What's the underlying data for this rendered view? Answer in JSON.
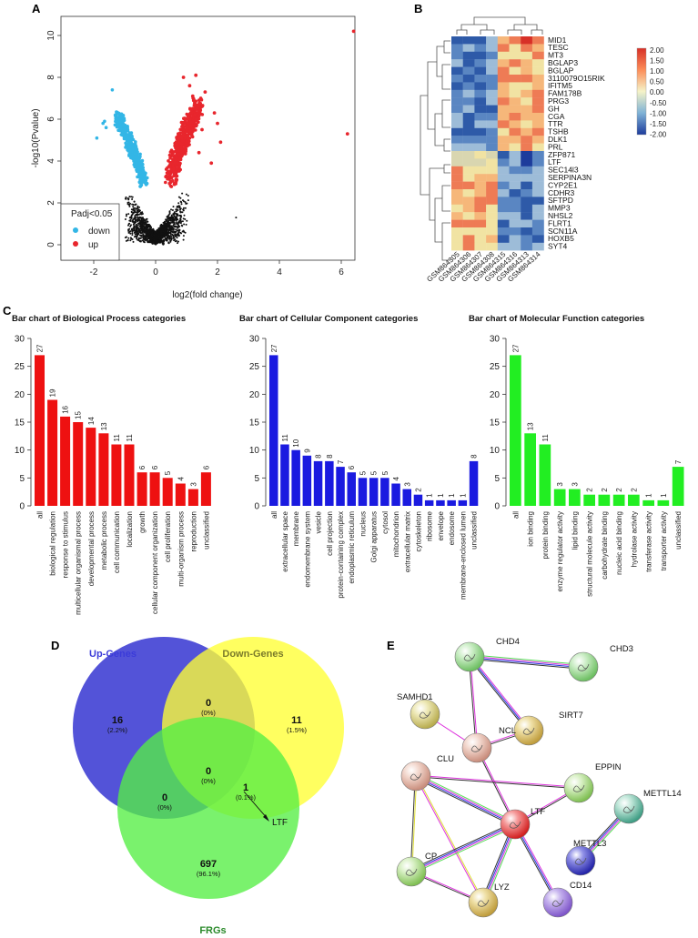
{
  "panels": {
    "a": "A",
    "b": "B",
    "c": "C",
    "d": "D",
    "e": "E"
  },
  "colors": {
    "up": "#e8262d",
    "down": "#33b6e6",
    "ns": "#111111",
    "bp": "#ee1111",
    "cc": "#1a1ae0",
    "mf": "#22ee22",
    "hm_low": "#2747a6",
    "hm_mid": "#f5f3c8",
    "hm_high": "#d73027"
  },
  "volcano": {
    "xlabel": "log2(fold change)",
    "ylabel": "-log10(Pvalue)",
    "xticks": [
      "-2",
      "0",
      "2",
      "4",
      "6"
    ],
    "yticks": [
      "0",
      "2",
      "4",
      "6",
      "8",
      "10"
    ],
    "legend_title": "Padj<0.05",
    "legend_down": "down",
    "legend_up": "up"
  },
  "heatmap": {
    "genes": [
      "MID1",
      "TESC",
      "MT3",
      "BGLAP3",
      "BGLAP",
      "3110079O15RIK",
      "IFITM5",
      "FAM178B",
      "PRG3",
      "GH",
      "CGA",
      "TTR",
      "TSHB",
      "DLK1",
      "PRL",
      "ZFP871",
      "LTF",
      "SEC14l3",
      "SERPINA3N",
      "CYP2E1",
      "CDHR3",
      "SFTPD",
      "MMP3",
      "NHSL2",
      "FLRT1",
      "SCN11A",
      "HOXB5",
      "SYT4"
    ],
    "samples": [
      "GSM864305",
      "GSM864306",
      "GSM864307",
      "GSM864308",
      "GSM864315",
      "GSM864316",
      "GSM864313",
      "GSM864314"
    ],
    "scale": [
      "2.00",
      "1.50",
      "1.00",
      "0.50",
      "0.00",
      "-0.50",
      "-1.00",
      "-1.50",
      "-2.00"
    ]
  },
  "chart_data": [
    {
      "type": "bar",
      "title": "Bar chart of Biological Process categories",
      "categories": [
        "all",
        "biological regulation",
        "response to stimulus",
        "multicellular organismal process",
        "developmental process",
        "metabolic process",
        "cell communication",
        "localization",
        "growth",
        "cellular component organization",
        "cell proliferation",
        "multi-organism process",
        "reproduction",
        "unclassified"
      ],
      "values": [
        27,
        19,
        16,
        15,
        14,
        13,
        11,
        11,
        6,
        6,
        5,
        4,
        3,
        6
      ],
      "yticks": [
        "0",
        "5",
        "10",
        "15",
        "20",
        "25",
        "30"
      ],
      "ylim": [
        0,
        30
      ]
    },
    {
      "type": "bar",
      "title": "Bar chart of Cellular Component categories",
      "categories": [
        "all",
        "extracellular space",
        "membrane",
        "endomembrane system",
        "vesicle",
        "cell projection",
        "protein-containing complex",
        "endoplasmic reticulum",
        "nucleus",
        "Golgi apparatus",
        "cytosol",
        "mitochondrion",
        "extracellular matrix",
        "cytoskeleton",
        "ribosome",
        "envelope",
        "endosome",
        "membrane-enclosed lumen",
        "unclassified"
      ],
      "values": [
        27,
        11,
        10,
        9,
        8,
        8,
        7,
        6,
        5,
        5,
        5,
        4,
        3,
        2,
        1,
        1,
        1,
        1,
        8
      ],
      "yticks": [
        "0",
        "5",
        "10",
        "15",
        "20",
        "25",
        "30"
      ],
      "ylim": [
        0,
        30
      ]
    },
    {
      "type": "bar",
      "title": "Bar chart of Molecular Function categories",
      "categories": [
        "all",
        "ion binding",
        "protein binding",
        "enzyme regulator activity",
        "lipid binding",
        "structural molecule activity",
        "carbohydrate binding",
        "nucleic acid binding",
        "hydrolase activity",
        "transferase activity",
        "transporter activity",
        "unclassified"
      ],
      "values": [
        27,
        13,
        11,
        3,
        3,
        2,
        2,
        2,
        2,
        1,
        1,
        7
      ],
      "yticks": [
        "0",
        "5",
        "10",
        "15",
        "20",
        "25",
        "30"
      ],
      "ylim": [
        0,
        30
      ]
    }
  ],
  "venn": {
    "up_title": "Up-Genes",
    "down_title": "Down-Genes",
    "frg_title": "FRGs",
    "regions": [
      {
        "n": "16",
        "p": "(2.2%)"
      },
      {
        "n": "0",
        "p": "(0%)"
      },
      {
        "n": "11",
        "p": "(1.5%)"
      },
      {
        "n": "0",
        "p": "(0%)"
      },
      {
        "n": "0",
        "p": "(0%)"
      },
      {
        "n": "1",
        "p": "(0.1%)"
      },
      {
        "n": "697",
        "p": "(96.1%)"
      }
    ],
    "callout": "LTF"
  },
  "network": {
    "nodes": [
      "CHD4",
      "CHD3",
      "SAMHD1",
      "SIRT7",
      "NCL",
      "CLU",
      "EPPIN",
      "METTL14",
      "LTF",
      "METTL3",
      "CP",
      "LYZ",
      "CD14"
    ]
  }
}
